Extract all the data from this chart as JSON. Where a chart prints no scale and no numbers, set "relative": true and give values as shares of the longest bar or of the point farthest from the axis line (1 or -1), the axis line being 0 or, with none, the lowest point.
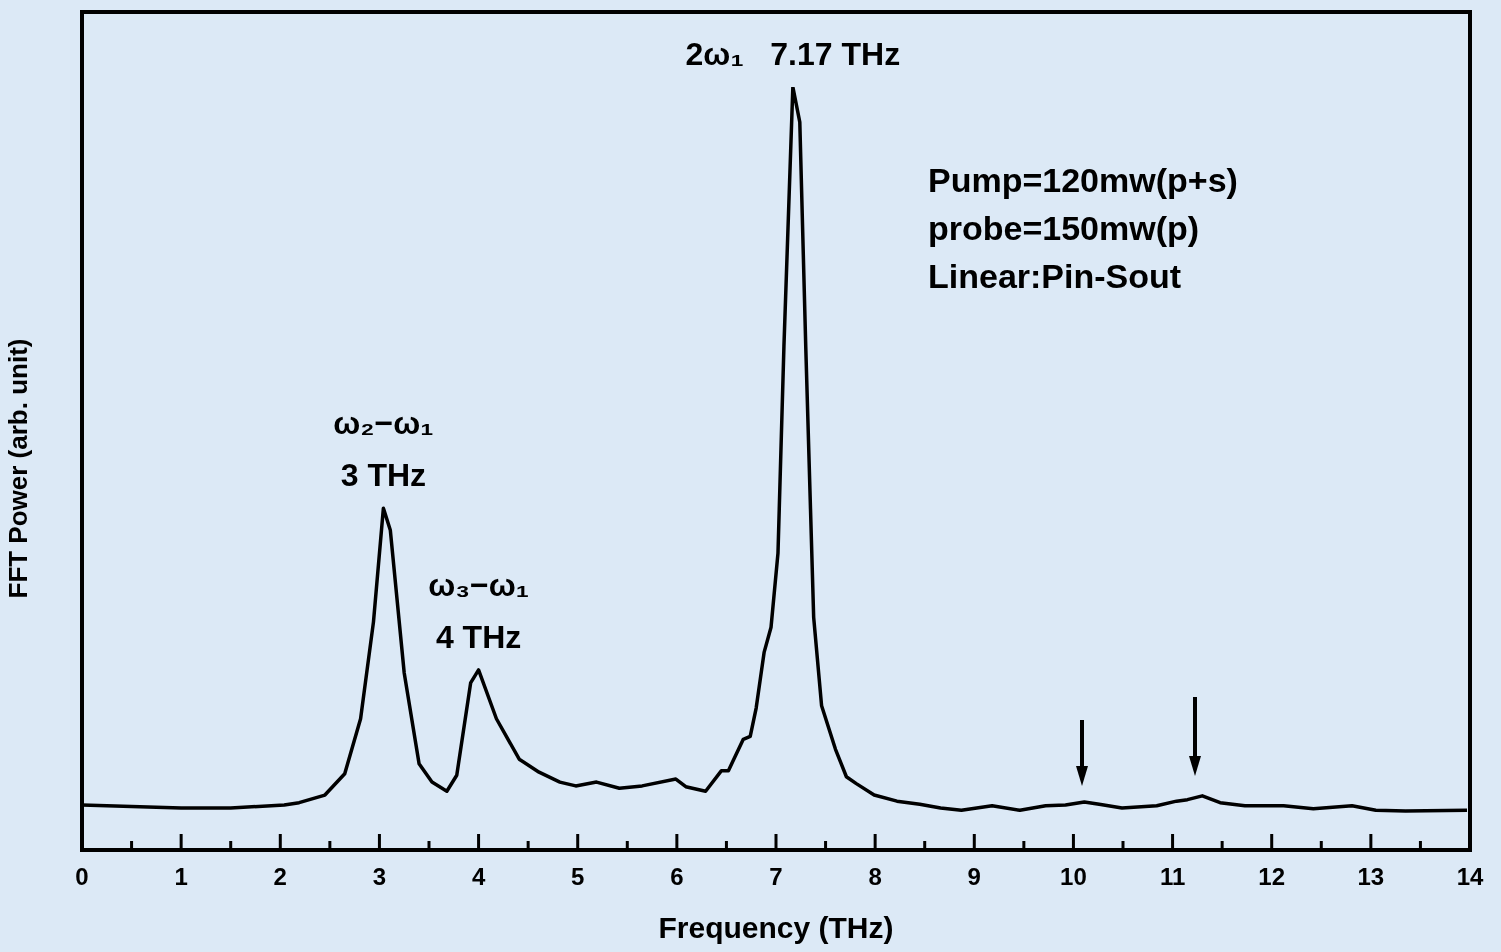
{
  "chart_data": {
    "type": "line",
    "relative": true,
    "xlabel": "Frequency (THz)",
    "ylabel": "FFT Power (arb. unit)",
    "xlim": [
      0,
      14
    ],
    "xticks": [
      0,
      {
        "value": 0.5,
        "label": null
      },
      1,
      {
        "value": 1.5,
        "label": null
      },
      2,
      {
        "value": 2.5,
        "label": null
      },
      3,
      {
        "value": 3.5,
        "label": null
      },
      4,
      {
        "value": 4.5,
        "label": null
      },
      5,
      {
        "value": 5.5,
        "label": null
      },
      6,
      {
        "value": 6.5,
        "label": null
      },
      7,
      {
        "value": 7.5,
        "label": null
      },
      8,
      {
        "value": 8.5,
        "label": null
      },
      9,
      {
        "value": 9.5,
        "label": null
      },
      10,
      {
        "value": 10.5,
        "label": null
      },
      11,
      {
        "value": 11.5,
        "label": null
      },
      12,
      {
        "value": 12.5,
        "label": null
      },
      13,
      {
        "value": 13.5,
        "label": null
      },
      14
    ],
    "series": [
      {
        "color": "#000000",
        "x": [
          0,
          0.5,
          1,
          1.5,
          2.04,
          2.19,
          2.45,
          2.65,
          2.81,
          2.94,
          3.04,
          3.11,
          3.25,
          3.4,
          3.53,
          3.68,
          3.78,
          3.92,
          4.0,
          4.18,
          4.41,
          4.61,
          4.82,
          4.98,
          5.19,
          5.42,
          5.65,
          5.99,
          6.09,
          6.29,
          6.45,
          6.52,
          6.67,
          6.74,
          6.8,
          6.88,
          6.95,
          7.02,
          7.08,
          7.17,
          7.24,
          7.3,
          7.38,
          7.46,
          7.6,
          7.71,
          7.81,
          7.99,
          8.22,
          8.45,
          8.66,
          8.87,
          9.18,
          9.46,
          9.72,
          9.92,
          10.11,
          10.26,
          10.49,
          10.84,
          11.04,
          11.15,
          11.3,
          11.48,
          11.73,
          12.12,
          12.42,
          12.81,
          13.05,
          13.35,
          13.97
        ],
        "values": [
          0.059,
          0.057,
          0.055,
          0.055,
          0.059,
          0.062,
          0.072,
          0.1,
          0.172,
          0.299,
          0.448,
          0.419,
          0.232,
          0.113,
          0.089,
          0.077,
          0.098,
          0.219,
          0.236,
          0.172,
          0.119,
          0.102,
          0.089,
          0.084,
          0.089,
          0.081,
          0.084,
          0.093,
          0.083,
          0.077,
          0.104,
          0.104,
          0.145,
          0.149,
          0.186,
          0.259,
          0.292,
          0.389,
          0.66,
          1,
          0.954,
          0.66,
          0.305,
          0.189,
          0.132,
          0.096,
          0.087,
          0.072,
          0.064,
          0.06,
          0.055,
          0.052,
          0.058,
          0.052,
          0.058,
          0.059,
          0.063,
          0.06,
          0.055,
          0.058,
          0.064,
          0.066,
          0.071,
          0.062,
          0.058,
          0.058,
          0.054,
          0.058,
          0.052,
          0.051,
          0.052
        ]
      }
    ],
    "annotations": [
      {
        "text": "2ω₁   7.17 THz",
        "x": 7.17,
        "y": 1
      },
      {
        "text": "ω₂−ω₁",
        "x": 3.04,
        "y": 0.448
      },
      {
        "text": "3 THz",
        "x": 3.04,
        "y": 0.448
      },
      {
        "text": "ω₃−ω₁",
        "x": 4.0,
        "y": 0.236
      },
      {
        "text": "4 THz",
        "x": 4.0,
        "y": 0.236
      },
      "Pump=120mw(p+s)",
      "probe=150mw(p)",
      "Linear:Pin-Sout"
    ]
  }
}
